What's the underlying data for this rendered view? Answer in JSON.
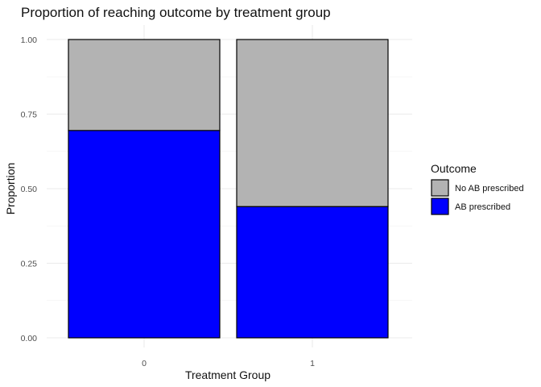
{
  "chart_data": {
    "type": "bar",
    "stacked": true,
    "title": "Proportion of reaching outcome by treatment group",
    "xlabel": "Treatment Group",
    "ylabel": "Proportion",
    "categories": [
      "0",
      "1"
    ],
    "ylim": [
      0,
      1
    ],
    "yticks": [
      "0.00",
      "0.25",
      "0.50",
      "0.75",
      "1.00"
    ],
    "grid": true,
    "legend": {
      "title": "Outcome",
      "position": "right",
      "entries": [
        "No AB prescribed",
        "AB prescribed"
      ]
    },
    "series": [
      {
        "name": "AB prescribed",
        "color": "#0000ff",
        "values": [
          0.695,
          0.44
        ]
      },
      {
        "name": "No AB prescribed",
        "color": "#b3b3b3",
        "values": [
          0.305,
          0.56
        ]
      }
    ]
  }
}
